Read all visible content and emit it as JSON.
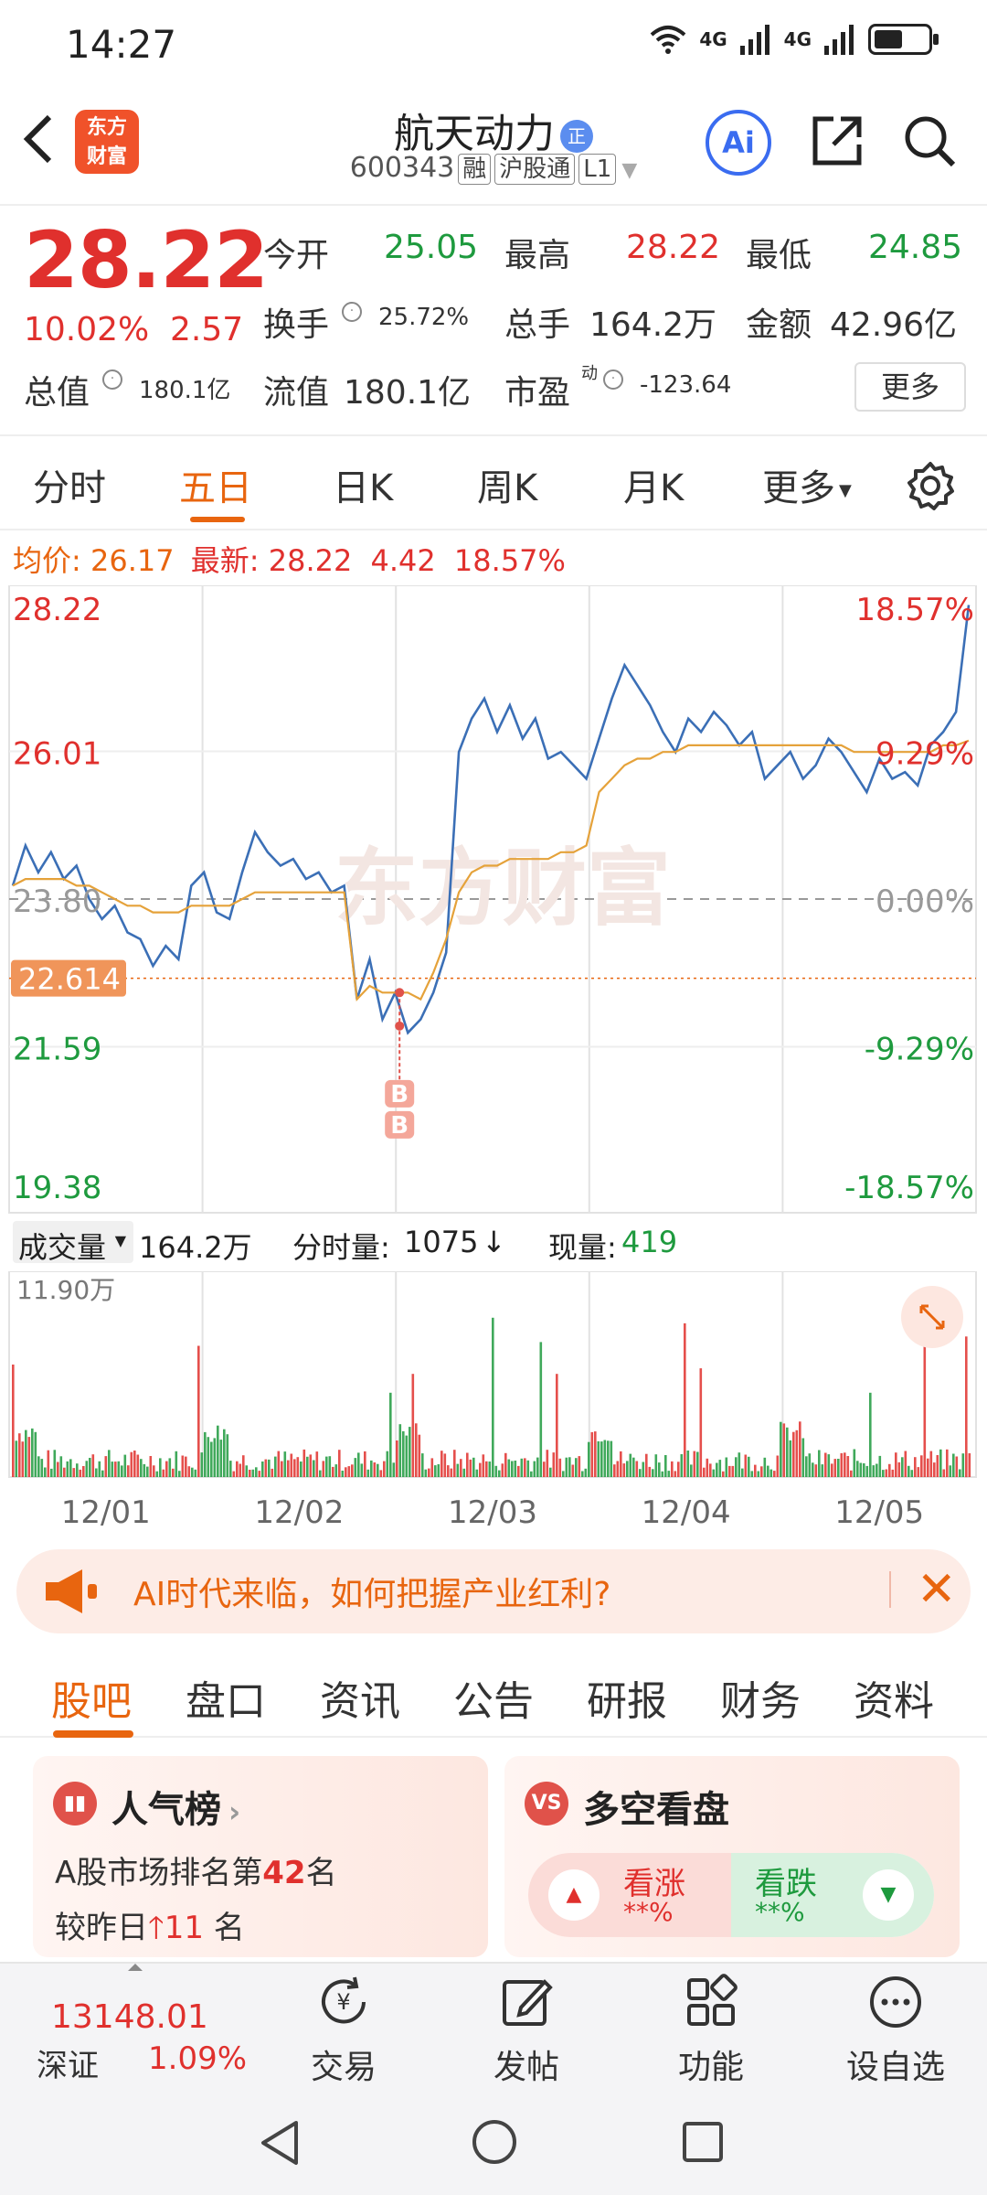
{
  "status_bar": {
    "time": "14:27",
    "network_1": "4G",
    "network_2": "4G"
  },
  "header": {
    "back_icon": "chevron-left-icon",
    "logo_line1": "东方",
    "logo_line2": "财富",
    "stock_name": "航天动力",
    "stock_badge": "正",
    "stock_code": "600343",
    "tag_margin": "融",
    "tag_connect": "沪股通",
    "tag_level": "L1"
  },
  "quote": {
    "price": "28.22",
    "change_pct": "10.02%",
    "change_val": "2.57",
    "open_label": "今开",
    "open": "25.05",
    "high_label": "最高",
    "high": "28.22",
    "low_label": "最低",
    "low": "24.85",
    "turnover_label": "换手",
    "turnover": "25.72%",
    "volume_label": "总手",
    "volume": "164.2万",
    "amount_label": "金额",
    "amount": "42.96亿",
    "mktcap_label": "总值",
    "mktcap": "180.1亿",
    "float_label": "流值",
    "float": "180.1亿",
    "pe_label": "市盈",
    "pe_sup": "动",
    "pe": "-123.64",
    "more_btn": "更多"
  },
  "period_tabs": [
    "分时",
    "五日",
    "日K",
    "周K",
    "月K",
    "更多"
  ],
  "info_line": {
    "avg_label": "均价:",
    "avg": "26.17",
    "latest_label": "最新:",
    "latest": "28.22",
    "chg": "4.42",
    "pct": "18.57%"
  },
  "chart_data": {
    "type": "line",
    "title": "",
    "x_labels": [
      "12/01",
      "12/02",
      "12/03",
      "12/04",
      "12/05"
    ],
    "y_left_ticks": [
      "28.22",
      "26.01",
      "23.80",
      "21.59",
      "19.38"
    ],
    "y_right_ticks": [
      "18.57%",
      "9.29%",
      "0.00%",
      "-9.29%",
      "-18.57%"
    ],
    "ylim": [
      19.38,
      28.22
    ],
    "prev_close": 23.8,
    "crosshair_value": "22.614",
    "markers": [
      "B",
      "B"
    ],
    "watermark": "东方财富",
    "series": [
      {
        "name": "价格",
        "color": "#3b6fb6",
        "values": [
          24.0,
          24.6,
          24.2,
          24.5,
          24.1,
          24.3,
          23.8,
          23.5,
          23.7,
          23.3,
          23.2,
          22.8,
          23.1,
          22.9,
          24.0,
          24.2,
          23.6,
          23.5,
          24.2,
          24.8,
          24.5,
          24.3,
          24.4,
          24.1,
          24.2,
          23.9,
          24.0,
          22.3,
          22.9,
          22.0,
          22.4,
          21.8,
          22.0,
          22.4,
          23.0,
          26.0,
          26.5,
          26.8,
          26.3,
          26.7,
          26.2,
          26.5,
          25.9,
          26.0,
          25.8,
          25.6,
          26.2,
          26.8,
          27.3,
          27.0,
          26.7,
          26.3,
          26.0,
          26.5,
          26.3,
          26.6,
          26.4,
          26.1,
          26.3,
          25.6,
          25.8,
          26.0,
          25.6,
          25.8,
          26.2,
          26.0,
          25.7,
          25.4,
          25.9,
          25.6,
          25.7,
          25.5,
          26.1,
          26.3,
          26.6,
          28.2
        ]
      },
      {
        "name": "均价",
        "color": "#e5a23a",
        "values": [
          24.0,
          24.1,
          24.1,
          24.1,
          24.1,
          24.0,
          24.0,
          23.9,
          23.8,
          23.7,
          23.7,
          23.6,
          23.6,
          23.6,
          23.7,
          23.7,
          23.7,
          23.7,
          23.8,
          23.9,
          23.9,
          23.9,
          23.9,
          23.9,
          23.9,
          23.9,
          23.9,
          22.3,
          22.5,
          22.4,
          22.4,
          22.4,
          22.3,
          22.7,
          23.2,
          23.9,
          24.2,
          24.3,
          24.3,
          24.4,
          24.4,
          24.4,
          24.4,
          24.5,
          24.5,
          24.6,
          25.4,
          25.6,
          25.8,
          25.9,
          25.9,
          26.0,
          26.0,
          26.1,
          26.1,
          26.1,
          26.1,
          26.1,
          26.1,
          26.1,
          26.1,
          26.1,
          26.1,
          26.1,
          26.1,
          26.1,
          26.0,
          26.0,
          26.0,
          26.0,
          26.0,
          26.0,
          26.0,
          26.1,
          26.1,
          26.17
        ]
      }
    ]
  },
  "volume": {
    "label": "成交量",
    "total": "164.2万",
    "minute_label": "分时量:",
    "minute": "1075",
    "now_label": "现量:",
    "now": "419",
    "max_label": "11.90万"
  },
  "promo": {
    "text": "AI时代来临，如何把握产业红利?",
    "icon": "megaphone-icon"
  },
  "section_tabs": [
    "股吧",
    "盘口",
    "资讯",
    "公告",
    "研报",
    "财务",
    "资料"
  ],
  "cards": {
    "hot_title": "人气榜",
    "hot_line1_pre": "A股市场排名第",
    "hot_rank": "42",
    "hot_line1_post": "名",
    "hot_line2_pre": "较昨日",
    "hot_change": "11",
    "hot_line2_post": "名",
    "vs_badge": "VS",
    "vs_title": "多空看盘",
    "bull_label": "看涨",
    "bull_val": "**%",
    "bear_label": "看跌",
    "bear_val": "**%"
  },
  "bottom_nav": {
    "index_value": "13148.01",
    "index_name": "深证",
    "index_pct": "1.09%",
    "trade": "交易",
    "post": "发帖",
    "func": "功能",
    "watch": "设自选"
  }
}
